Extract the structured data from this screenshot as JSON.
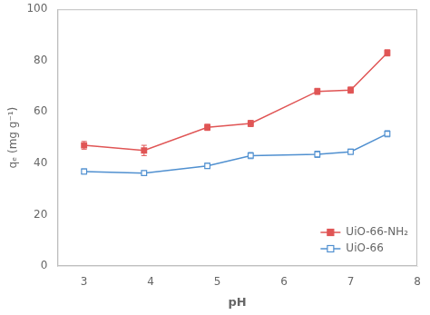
{
  "chart_data": {
    "type": "line",
    "x": [
      3.0,
      3.9,
      4.85,
      5.5,
      6.5,
      7.0,
      7.55
    ],
    "series": [
      {
        "name": "UiO-66-NH₂",
        "color": "#e05555",
        "marker": "square",
        "line_style": "solid",
        "values": [
          47.0,
          45.0,
          54.0,
          55.5,
          68.0,
          68.5,
          83.0
        ],
        "errors": [
          1.5,
          2.0,
          1.2,
          1.2,
          1.2,
          1.2,
          1.2
        ]
      },
      {
        "name": "UiO-66",
        "color": "#5090d0",
        "marker": "open_square",
        "line_style": "solid",
        "values": [
          36.8,
          36.2,
          39.0,
          43.0,
          43.5,
          44.5,
          51.5
        ],
        "errors": [
          1.0,
          0.8,
          1.0,
          1.2,
          1.2,
          1.0,
          1.2
        ]
      }
    ],
    "xlabel": "pH",
    "ylabel": "qₑ (mg g⁻¹)",
    "xlim": [
      2.6,
      8.0
    ],
    "ylim": [
      0,
      100
    ],
    "xticks": [
      3,
      4,
      5,
      6,
      7,
      8
    ],
    "yticks": [
      0,
      20,
      40,
      60,
      80,
      100
    ],
    "grid": false,
    "legend": "lower right"
  }
}
